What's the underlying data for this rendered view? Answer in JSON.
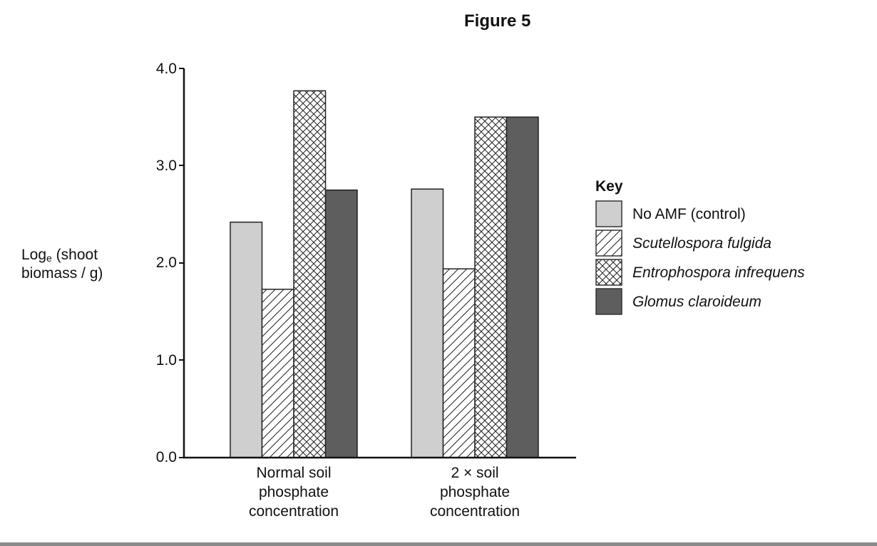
{
  "figure": {
    "title": "Figure 5"
  },
  "axis": {
    "ylabel_main": "Log",
    "ylabel_sub": "e",
    "ylabel_rest": " (shoot",
    "ylabel_line2": "biomass / g)",
    "ticks": [
      "4.0",
      "3.0",
      "2.0",
      "1.0",
      "0.0"
    ]
  },
  "categories": [
    {
      "line1": "Normal soil",
      "line2": "phosphate",
      "line3": "concentration"
    },
    {
      "line1": "2 × soil",
      "line2": "phosphate",
      "line3": "concentration"
    }
  ],
  "legend": {
    "title": "Key",
    "items": [
      {
        "label": "No AMF (control)",
        "pattern": "solid-light",
        "color": "#cfcfcf"
      },
      {
        "label": "Scutellospora fulgida",
        "pattern": "diagonal-hatch",
        "color": "#ffffff"
      },
      {
        "label": "Entrophospora infrequens",
        "pattern": "cross-hatch",
        "color": "#ffffff"
      },
      {
        "label": "Glomus claroideum",
        "pattern": "solid-dark",
        "color": "#5e5e5e"
      }
    ]
  },
  "chart_data": {
    "type": "bar",
    "title": "Figure 5",
    "xlabel": "",
    "ylabel": "Loge (shoot biomass / g)",
    "ylim": [
      0,
      4.0
    ],
    "yticks": [
      0.0,
      1.0,
      2.0,
      3.0,
      4.0
    ],
    "grid": false,
    "legend_position": "right",
    "categories": [
      "Normal soil phosphate concentration",
      "2 × soil phosphate concentration"
    ],
    "series": [
      {
        "name": "No AMF (control)",
        "values": [
          2.42,
          2.76
        ]
      },
      {
        "name": "Scutellospora fulgida",
        "values": [
          1.73,
          1.94
        ]
      },
      {
        "name": "Entrophospora infrequens",
        "values": [
          3.77,
          3.5
        ]
      },
      {
        "name": "Glomus claroideum",
        "values": [
          2.75,
          3.5
        ]
      }
    ]
  }
}
